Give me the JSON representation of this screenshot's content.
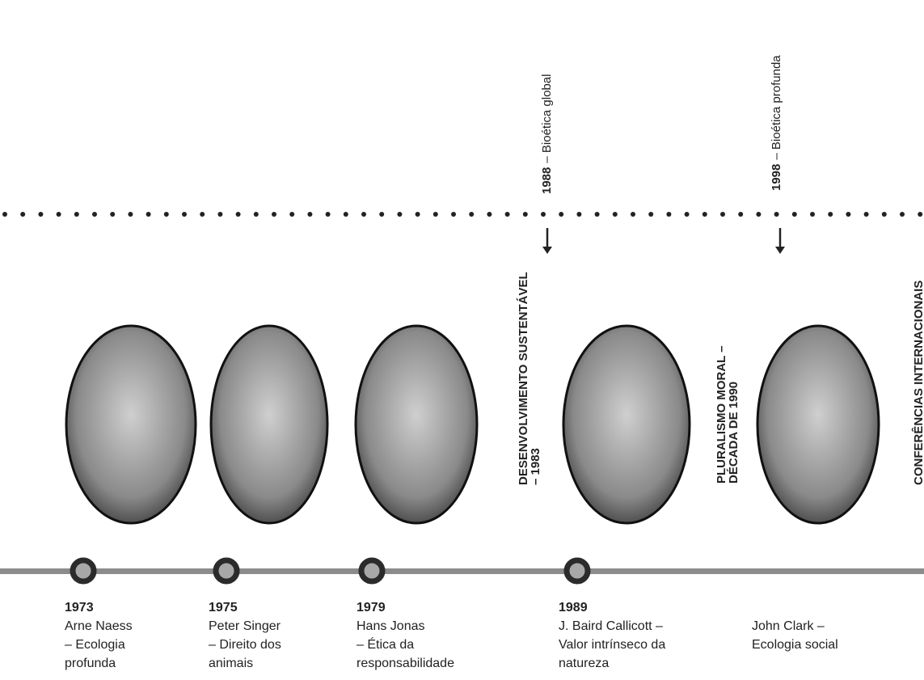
{
  "top_events": [
    {
      "year": "1988",
      "label": "– Bioética global"
    },
    {
      "year": "1998",
      "label": "– Bioética profunda"
    }
  ],
  "vertical_headings": [
    {
      "lines": [
        "DESENVOLVIMENTO SUSTENTÁVEL",
        "– 1983"
      ]
    },
    {
      "lines": [
        "PLURALISMO MORAL –",
        "DÉCADA DE 1990"
      ]
    },
    {
      "lines": [
        "CONFERÊNCIAS INTERNACIONAIS"
      ]
    }
  ],
  "entries": [
    {
      "year": "1973",
      "lines": [
        "Arne Naess",
        "– Ecologia",
        "profunda"
      ]
    },
    {
      "year": "1975",
      "lines": [
        "Peter Singer",
        "– Direito dos",
        "animais"
      ]
    },
    {
      "year": "1979",
      "lines": [
        "Hans Jonas",
        "– Ética da",
        "responsabilidade"
      ]
    },
    {
      "year": "1989",
      "lines": [
        "J. Baird Callicott –",
        "Valor intrínseco da",
        "natureza"
      ]
    },
    {
      "lines": [
        "John Clark –",
        "Ecologia social"
      ]
    }
  ]
}
